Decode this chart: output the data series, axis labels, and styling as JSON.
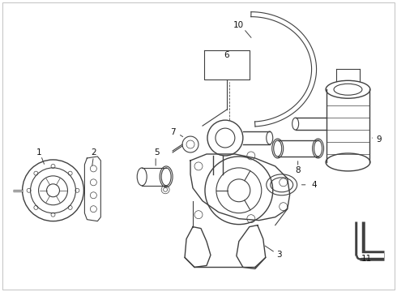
{
  "bg_color": "#ffffff",
  "line_color": "#404040",
  "label_color": "#111111",
  "figsize": [
    4.9,
    3.6
  ],
  "dpi": 100,
  "border_color": "#cccccc"
}
